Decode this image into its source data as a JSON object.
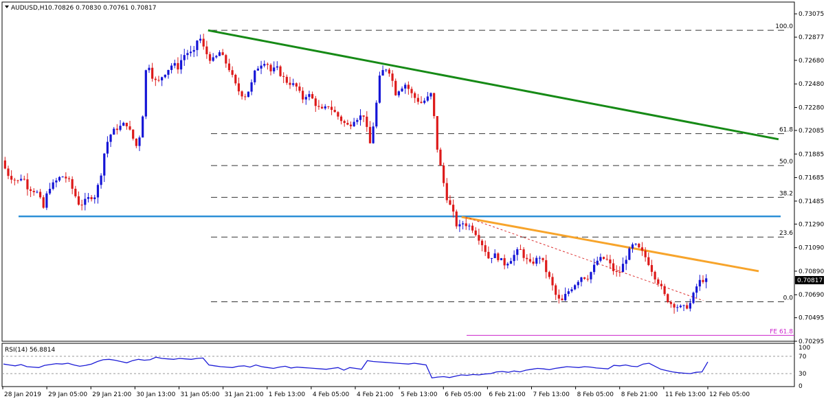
{
  "header": {
    "symbol": "AUDUSD,H1",
    "ohlc": "0.70826 0.70830 0.70761 0.70817"
  },
  "rsi_header": {
    "label": "RSI(14) 56.8814"
  },
  "colors": {
    "bull": "#1515d6",
    "bear": "#dd1a1a",
    "green_line": "#168a16",
    "blue_line": "#2b8fd6",
    "orange_line": "#f7a42b",
    "red_dash": "#dd3333",
    "fe_line": "#cc22cc",
    "rsi_line": "#1a1ad6",
    "fib_dash": "#333333"
  },
  "chart_data": [
    {
      "type": "candlestick",
      "title": "",
      "symbol": "AUDUSD",
      "timeframe": "H1",
      "ylim": [
        0.70295,
        0.73175
      ],
      "yticks": [
        "0.73075",
        "0.72877",
        "0.72680",
        "0.72480",
        "0.72280",
        "0.72085",
        "0.71885",
        "0.71685",
        "0.71485",
        "0.71290",
        "0.71090",
        "0.70890",
        "0.70690",
        "0.70495",
        "0.70295"
      ],
      "xticks": [
        "28 Jan 2019",
        "29 Jan 05:00",
        "29 Jan 21:00",
        "30 Jan 13:00",
        "31 Jan 05:00",
        "31 Jan 21:00",
        "1 Feb 13:00",
        "4 Feb 05:00",
        "4 Feb 21:00",
        "5 Feb 13:00",
        "6 Feb 05:00",
        "6 Feb 21:00",
        "7 Feb 13:00",
        "8 Feb 05:00",
        "8 Feb 21:00",
        "11 Feb 13:00",
        "12 Feb 05:00"
      ],
      "current_price": "0.70817",
      "path": [
        0.7183,
        0.7172,
        0.7168,
        0.7165,
        0.717,
        0.716,
        0.7158,
        0.7155,
        0.7142,
        0.716,
        0.7163,
        0.7168,
        0.717,
        0.7165,
        0.7155,
        0.7145,
        0.7148,
        0.7152,
        0.7153,
        0.7168,
        0.7195,
        0.7205,
        0.721,
        0.7212,
        0.7215,
        0.7205,
        0.7195,
        0.721,
        0.727,
        0.7255,
        0.7248,
        0.7255,
        0.726,
        0.7265,
        0.7262,
        0.7272,
        0.7275,
        0.7273,
        0.729,
        0.7278,
        0.727,
        0.7268,
        0.7275,
        0.7268,
        0.726,
        0.7248,
        0.724,
        0.7238,
        0.7245,
        0.726,
        0.7265,
        0.7268,
        0.7258,
        0.7262,
        0.7255,
        0.725,
        0.7248,
        0.7245,
        0.7235,
        0.724,
        0.7235,
        0.7228,
        0.7225,
        0.723,
        0.7225,
        0.722,
        0.7215,
        0.7212,
        0.7218,
        0.722,
        0.7222,
        0.7195,
        0.722,
        0.7255,
        0.7262,
        0.7258,
        0.724,
        0.7245,
        0.7248,
        0.724,
        0.7235,
        0.7232,
        0.7235,
        0.724,
        0.7195,
        0.717,
        0.715,
        0.714,
        0.7125,
        0.713,
        0.7128,
        0.7125,
        0.7118,
        0.711,
        0.71,
        0.7103,
        0.71,
        0.7095,
        0.7098,
        0.7103,
        0.7108,
        0.71,
        0.7095,
        0.7098,
        0.7102,
        0.709,
        0.708,
        0.7068,
        0.7062,
        0.707,
        0.7075,
        0.708,
        0.7085,
        0.7083,
        0.709,
        0.7098,
        0.71,
        0.7098,
        0.709,
        0.7086,
        0.7095,
        0.7105,
        0.7112,
        0.7108,
        0.7103,
        0.7095,
        0.7085,
        0.7078,
        0.7068,
        0.7062,
        0.706,
        0.7058,
        0.7058,
        0.7062,
        0.7075,
        0.7082,
        0.7081
      ],
      "horizontal_lines": [
        {
          "name": "support",
          "value": 0.71355
        },
        {
          "name": "fe-61.8",
          "value": 0.70345
        }
      ],
      "fibonacci": [
        {
          "label": "100.0",
          "value": 0.72935
        },
        {
          "label": "61.8",
          "value": 0.72058
        },
        {
          "label": "50.0",
          "value": 0.71787
        },
        {
          "label": "38.2",
          "value": 0.71517
        },
        {
          "label": "23.6",
          "value": 0.7118
        },
        {
          "label": "0.0",
          "value": 0.7063
        }
      ],
      "fe_label": "FE 61.8",
      "trendlines": [
        {
          "name": "green-resistance",
          "from": [
            0.26,
            0.72935
          ],
          "to": [
            0.98,
            0.7201
          ]
        },
        {
          "name": "orange-resistance",
          "from": [
            0.58,
            0.7135
          ],
          "to": [
            0.955,
            0.7089
          ]
        },
        {
          "name": "red-dashed-support",
          "from": [
            0.585,
            0.7135
          ],
          "to": [
            0.885,
            0.7064
          ]
        }
      ]
    },
    {
      "type": "line",
      "title": "",
      "indicator": "RSI(14)",
      "value": "56.8814",
      "ylim": [
        0,
        100
      ],
      "levels": [
        70,
        30
      ],
      "yticks": [
        "100",
        "70",
        "30",
        "0"
      ],
      "values": [
        52,
        50,
        48,
        51,
        46,
        45,
        44,
        49,
        51,
        53,
        52,
        54,
        50,
        47,
        49,
        52,
        58,
        62,
        63,
        61,
        58,
        55,
        60,
        63,
        61,
        62,
        68,
        65,
        64,
        63,
        65,
        64,
        63,
        65,
        66,
        50,
        48,
        46,
        45,
        44,
        47,
        48,
        45,
        50,
        46,
        44,
        42,
        45,
        47,
        43,
        45,
        44,
        43,
        42,
        41,
        40,
        42,
        44,
        38,
        44,
        42,
        40,
        60,
        58,
        57,
        56,
        55,
        54,
        53,
        52,
        54,
        52,
        50,
        20,
        22,
        23,
        21,
        24,
        27,
        26,
        28,
        27,
        29,
        30,
        34,
        35,
        33,
        36,
        34,
        38,
        40,
        42,
        41,
        39,
        42,
        44,
        46,
        45,
        44,
        46,
        45,
        43,
        42,
        41,
        49,
        48,
        50,
        47,
        46,
        52,
        54,
        47,
        40,
        37,
        34,
        32,
        31,
        30,
        33,
        34,
        57
      ]
    }
  ]
}
